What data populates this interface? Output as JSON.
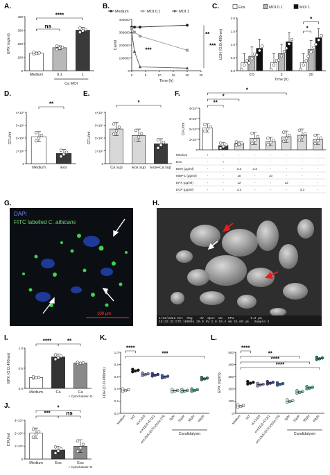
{
  "panel_labels": {
    "A": "A.",
    "B": "B.",
    "C": "C.",
    "D": "D.",
    "E": "E.",
    "F": "F.",
    "G": "G.",
    "H": "H.",
    "I": "I.",
    "J": "J.",
    "K": "K.",
    "L": "L."
  },
  "micro_g": {
    "dapi": "DAPI",
    "fitc_prefix": "FITC labelled ",
    "fitc_species": "C. albicans",
    "scale": "100 µm"
  },
  "micro_h": {
    "info": "1/16/2022 Det  Mag    HV  Spot  WD   HFW         5.0 µm\n16:22:32 ETD 10000x 10.0 kV 2.0 10.4 mm 25.60 µm   Sample 2"
  },
  "chart_data": [
    {
      "panel": "A",
      "type": "bar",
      "categories": [
        "Medium",
        "0.1",
        "1"
      ],
      "group_label": "Ca MOI",
      "ylabel": "EPX (ng/ml)",
      "ylim": [
        0,
        400
      ],
      "yticks": [
        "0",
        "100",
        "200",
        "300",
        "400"
      ],
      "values": [
        130,
        170,
        300
      ],
      "errors": [
        8,
        15,
        20
      ],
      "colors": [
        "#ffffff",
        "#b8b8b8",
        "#3a3a3a"
      ],
      "significance": [
        {
          "from": 0,
          "to": 1,
          "label": "ns"
        },
        {
          "from": 0,
          "to": 2,
          "label": "****"
        }
      ]
    },
    {
      "panel": "B",
      "type": "line",
      "xlabel": "Time (h)",
      "ylabel": "Ca/ml",
      "xlim": [
        0,
        25
      ],
      "ylim": [
        0,
        400000
      ],
      "xticks": [
        "0",
        "5",
        "10",
        "15",
        "20",
        "25"
      ],
      "yticks": [
        "0",
        "100000",
        "200000",
        "300000",
        "400000"
      ],
      "series": [
        {
          "name": "Medium",
          "marker": "circle",
          "color": "#222222",
          "x": [
            0,
            1,
            3,
            20
          ],
          "y": [
            340000,
            340000,
            340000,
            355000
          ]
        },
        {
          "name": "MOI 0.1",
          "marker": "square",
          "color": "#999999",
          "x": [
            0,
            1,
            3,
            20
          ],
          "y": [
            330000,
            300000,
            270000,
            160000
          ]
        },
        {
          "name": "MOI 1",
          "marker": "triangle",
          "color": "#555555",
          "x": [
            0,
            1,
            3,
            20
          ],
          "y": [
            300000,
            150000,
            30000,
            20000
          ]
        }
      ],
      "significance": [
        "***",
        "**",
        "***"
      ]
    },
    {
      "panel": "C",
      "type": "bar",
      "xlabel": "Time (h)",
      "ylabel": "LDH (O.D.490nm)",
      "categories": [
        "0.5",
        "3",
        "20"
      ],
      "ylim": [
        0,
        2.0
      ],
      "yticks": [
        "0.0",
        "0.5",
        "1.0",
        "1.5",
        "2.0"
      ],
      "series": [
        {
          "name": "Eos",
          "color": "#ffffff",
          "values": [
            0.3,
            0.3,
            0.3
          ]
        },
        {
          "name": "MOI 0.1",
          "color": "#b8b8b8",
          "values": [
            0.55,
            0.65,
            0.8
          ]
        },
        {
          "name": "MOI 1",
          "color": "#111111",
          "values": [
            0.85,
            1.1,
            1.25
          ]
        }
      ],
      "significance": [
        "*",
        "*"
      ]
    },
    {
      "panel": "D",
      "type": "bar",
      "categories": [
        "Medium",
        "Eos"
      ],
      "ylabel": "CFU/ml",
      "ylim": [
        0,
        400000
      ],
      "yticks": [
        "0",
        "1×10⁵",
        "2×10⁵",
        "3×10⁵",
        "4×10⁵"
      ],
      "values": [
        210000,
        80000
      ],
      "errors": [
        40000,
        30000
      ],
      "colors": [
        "#ffffff",
        "#3a3a3a"
      ],
      "significance": "**"
    },
    {
      "panel": "E",
      "type": "bar",
      "categories": [
        "Ca sup",
        "Eos sup",
        "Eos+Ca sup"
      ],
      "ylabel": "CFU/ml",
      "ylim": [
        0,
        400000
      ],
      "yticks": [
        "0",
        "1×10⁵",
        "2×10⁵",
        "3×10⁵",
        "4×10⁵"
      ],
      "values": [
        270000,
        220000,
        155000
      ],
      "errors": [
        50000,
        50000,
        40000
      ],
      "colors": [
        "#d8d8d8",
        "#d8d8d8",
        "#3a3a3a"
      ],
      "significance": "*"
    },
    {
      "panel": "F",
      "type": "bar",
      "ylabel": "CFU/ml",
      "ylim": [
        0,
        400000
      ],
      "yticks": [
        "0",
        "1×10⁵",
        "2×10⁵",
        "3×10⁵",
        "4×10⁵"
      ],
      "values": [
        210000,
        40000,
        60000,
        110000,
        80000,
        125000,
        140000,
        100000
      ],
      "errors": [
        40000,
        30000,
        20000,
        60000,
        40000,
        55000,
        60000,
        50000
      ],
      "colors": [
        "#ffffff",
        "#3a3a3a",
        "#d8d8d8",
        "#d8d8d8",
        "#d8d8d8",
        "#d8d8d8",
        "#d8d8d8",
        "#d8d8d8"
      ],
      "significance": [
        "**",
        "*",
        "*"
      ],
      "table": [
        {
          "label": "Medium",
          "cells": [
            "+",
            "-",
            "-",
            "-",
            "-",
            "-",
            "-",
            "-"
          ]
        },
        {
          "label": "Eos",
          "cells": [
            "-",
            "+",
            "-",
            "-",
            "-",
            "-",
            "-",
            "-"
          ]
        },
        {
          "label": "EDN (μg/ml)",
          "cells": [
            "-",
            "-",
            "3.3",
            "3.3",
            "-",
            "-",
            "-",
            "-"
          ]
        },
        {
          "label": "MBP-1 (μg/ml)",
          "cells": [
            "-",
            "-",
            "10",
            "-",
            "10",
            "-",
            "-",
            "-"
          ]
        },
        {
          "label": "EPX (μg/ml)",
          "cells": [
            "-",
            "-",
            "12",
            "-",
            "-",
            "12",
            "-",
            "-"
          ]
        },
        {
          "label": "ECP (μg/ml)",
          "cells": [
            "-",
            "-",
            "3.3",
            "-",
            "-",
            "-",
            "3.3",
            "-"
          ]
        }
      ]
    },
    {
      "panel": "I",
      "type": "bar",
      "categories": [
        "Medium",
        "Ca",
        "Ca"
      ],
      "sublabels": [
        "",
        "",
        "+ Cytochalasin D"
      ],
      "ylabel": "EPX (O.D.490nm)",
      "ylim": [
        0,
        1.0
      ],
      "yticks": [
        "0.0",
        "0.5",
        "1.0"
      ],
      "values": [
        0.27,
        0.78,
        0.63
      ],
      "errors": [
        0.02,
        0.07,
        0.02
      ],
      "colors": [
        "#ffffff",
        "#333333",
        "#8a8a8a"
      ],
      "significance": [
        "****",
        "**"
      ]
    },
    {
      "panel": "J",
      "type": "bar",
      "categories": [
        "Medium",
        "Eos",
        "Eos"
      ],
      "sublabels": [
        "",
        "",
        "+ Cytochalasin D"
      ],
      "ylabel": "CFU/ml",
      "ylim": [
        0,
        300000
      ],
      "yticks": [
        "0",
        "1×10⁵",
        "2×10⁵",
        "3×10⁵"
      ],
      "values": [
        200000,
        70000,
        100000
      ],
      "errors": [
        40000,
        30000,
        50000
      ],
      "colors": [
        "#ffffff",
        "#3a3a3a",
        "#8a8a8a"
      ],
      "significance": [
        "*",
        "***",
        "ns"
      ]
    },
    {
      "panel": "K",
      "type": "scatter",
      "ylabel": "LDH (O.D.490nm)",
      "ylim": [
        0,
        1.0
      ],
      "yticks": [
        "0.0",
        "0.2",
        "0.4",
        "0.6",
        "0.8",
        "1.0"
      ],
      "categories": [
        "Medium",
        "WT",
        "ece1Δ/Δ",
        "ece1Δ/Δ+ECE1",
        "ece1Δ/Δ+ECE1Δ184-279",
        "3μM",
        "15μM",
        "30μM",
        "60μM"
      ],
      "group_label": "Candidalysin",
      "values": [
        0.38,
        0.7,
        0.64,
        0.63,
        0.6,
        0.37,
        0.37,
        0.38,
        0.57
      ],
      "colors": [
        "#ffffff",
        "#111111",
        "#8a8ad0",
        "#3a3a9a",
        "#3a6ab0",
        "#c8ecd8",
        "#8fd8b0",
        "#4cb88a",
        "#1e8a5e"
      ],
      "significance": [
        "****",
        "***"
      ]
    },
    {
      "panel": "L",
      "type": "scatter",
      "ylabel": "EPX (ng/ml)",
      "ylim": [
        0,
        500
      ],
      "yticks": [
        "0",
        "100",
        "200",
        "300",
        "400",
        "500"
      ],
      "categories": [
        "Medium",
        "WT",
        "ece1Δ/Δ",
        "ece1Δ/Δ+ECE1",
        "ece1Δ/Δ+ECE1Δ184-279",
        "3μM",
        "15μM",
        "30μM",
        "60μM"
      ],
      "group_label": "Candidalysin",
      "values": [
        60,
        250,
        235,
        250,
        240,
        100,
        175,
        210,
        450
      ],
      "colors": [
        "#ffffff",
        "#111111",
        "#8a8ad0",
        "#3a3a9a",
        "#3a6ab0",
        "#c8ecd8",
        "#8fd8b0",
        "#4cb88a",
        "#1e8a5e"
      ],
      "significance": [
        "****",
        "**",
        "****",
        "****"
      ]
    }
  ]
}
